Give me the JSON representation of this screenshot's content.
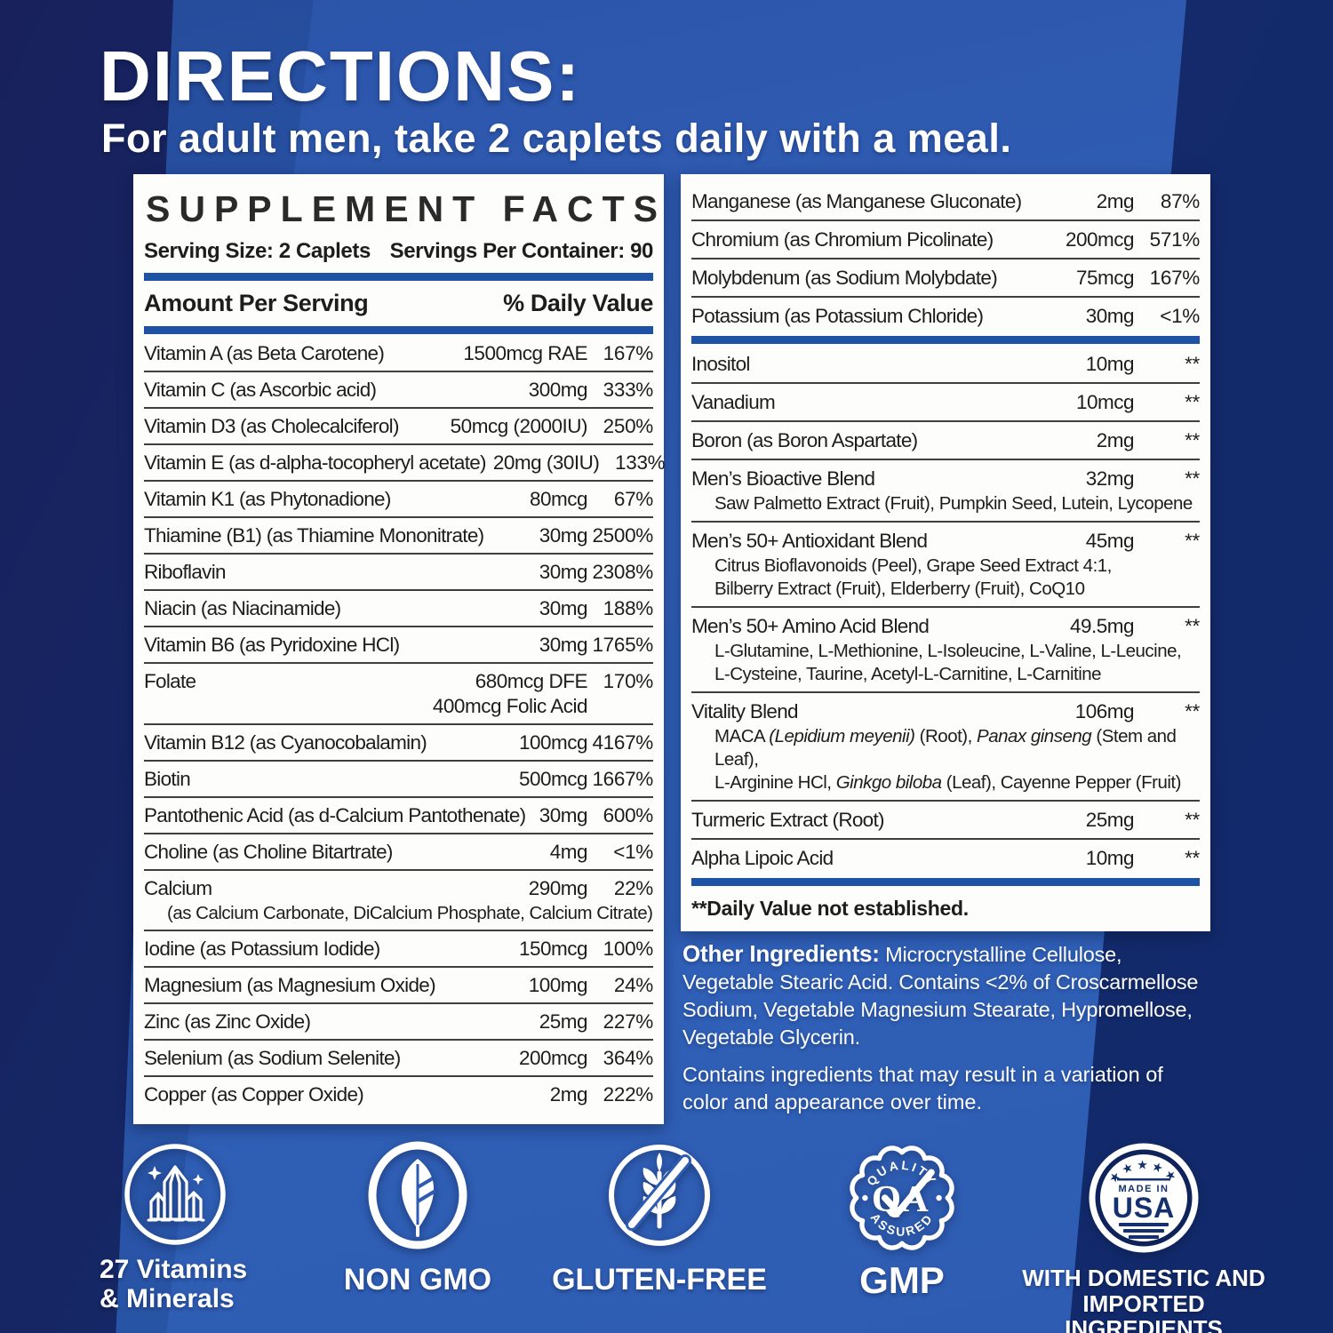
{
  "header": {
    "title": "DIRECTIONS:",
    "subtitle": "For adult men, take 2 caplets daily with a meal."
  },
  "supplement_facts": {
    "title": "SUPPLEMENT FACTS",
    "serving_size": "Serving Size: 2 Caplets",
    "servings_per_container": "Servings Per Container: 90",
    "amount_header": "Amount Per Serving",
    "dv_header": "% Daily Value",
    "left_rows": [
      {
        "name": "Vitamin A (as Beta Carotene)",
        "amount": "1500mcg RAE",
        "dv": "167%"
      },
      {
        "name": "Vitamin C (as Ascorbic acid)",
        "amount": "300mg",
        "dv": "333%"
      },
      {
        "name": "Vitamin D3 (as Cholecalciferol)",
        "amount": "50mcg (2000IU)",
        "dv": "250%"
      },
      {
        "name": "Vitamin E (as d-alpha-tocopheryl acetate)",
        "amount": "20mg (30IU)",
        "dv": "133%"
      },
      {
        "name": "Vitamin K1 (as Phytonadione)",
        "amount": "80mcg",
        "dv": "67%"
      },
      {
        "name": "Thiamine (B1) (as Thiamine Mononitrate)",
        "amount": "30mg",
        "dv": "2500%"
      },
      {
        "name": "Riboflavin",
        "amount": "30mg",
        "dv": "2308%"
      },
      {
        "name": "Niacin (as Niacinamide)",
        "amount": "30mg",
        "dv": "188%"
      },
      {
        "name": "Vitamin B6 (as Pyridoxine HCl)",
        "amount": "30mg",
        "dv": "1765%"
      },
      {
        "name": "Folate",
        "amount": "680mcg DFE",
        "amount2": "400mcg Folic Acid",
        "dv": "170%"
      },
      {
        "name": "Vitamin B12 (as Cyanocobalamin)",
        "amount": "100mcg",
        "dv": "4167%"
      },
      {
        "name": "Biotin",
        "amount": "500mcg",
        "dv": "1667%"
      },
      {
        "name": "Pantothenic Acid (as d-Calcium Pantothenate)",
        "amount": "30mg",
        "dv": "600%"
      },
      {
        "name": "Choline (as Choline Bitartrate)",
        "amount": "4mg",
        "dv": "<1%"
      },
      {
        "name": "Calcium",
        "amount": "290mg",
        "dv": "22%",
        "sub": "(as Calcium Carbonate, DiCalcium Phosphate, Calcium Citrate)"
      },
      {
        "name": "Iodine (as Potassium Iodide)",
        "amount": "150mcg",
        "dv": "100%"
      },
      {
        "name": "Magnesium (as Magnesium Oxide)",
        "amount": "100mg",
        "dv": "24%"
      },
      {
        "name": "Zinc (as Zinc Oxide)",
        "amount": "25mg",
        "dv": "227%"
      },
      {
        "name": "Selenium (as Sodium Selenite)",
        "amount": "200mcg",
        "dv": "364%"
      },
      {
        "name": "Copper (as Copper Oxide)",
        "amount": "2mg",
        "dv": "222%"
      }
    ],
    "right_rows": [
      {
        "name": "Manganese (as Manganese Gluconate)",
        "amount": "2mg",
        "dv": "87%"
      },
      {
        "name": "Chromium (as Chromium Picolinate)",
        "amount": "200mcg",
        "dv": "571%"
      },
      {
        "name": "Molybdenum (as Sodium Molybdate)",
        "amount": "75mcg",
        "dv": "167%"
      },
      {
        "name": "Potassium (as Potassium Chloride)",
        "amount": "30mg",
        "dv": "<1%"
      },
      {
        "bar": true
      },
      {
        "name": "Inositol",
        "amount": "10mg",
        "dv": "**"
      },
      {
        "name": "Vanadium",
        "amount": "10mcg",
        "dv": "**"
      },
      {
        "name": "Boron (as Boron Aspartate)",
        "amount": "2mg",
        "dv": "**"
      },
      {
        "name": "Men’s Bioactive Blend",
        "amount": "32mg",
        "dv": "**",
        "sub": "Saw Palmetto Extract (Fruit), Pumpkin Seed, Lutein, Lycopene"
      },
      {
        "name": "Men’s 50+ Antioxidant Blend",
        "amount": "45mg",
        "dv": "**",
        "sub": "Citrus Bioflavonoids (Peel), Grape Seed Extract 4:1,\nBilberry Extract (Fruit), Elderberry (Fruit), CoQ10"
      },
      {
        "name": "Men’s 50+ Amino Acid Blend",
        "amount": "49.5mg",
        "dv": "**",
        "sub": "L-Glutamine, L-Methionine, L-Isoleucine, L-Valine, L-Leucine,\nL-Cysteine, Taurine, Acetyl-L-Carnitine, L-Carnitine"
      },
      {
        "name": "Vitality Blend",
        "amount": "106mg",
        "dv": "**",
        "sub": [
          {
            "t": "MACA "
          },
          {
            "t": "(Lepidium meyenii)",
            "i": 1
          },
          {
            "t": " (Root), "
          },
          {
            "t": "Panax ginseng",
            "i": 1
          },
          {
            "t": " (Stem and Leaf),"
          },
          {
            "br": 1
          },
          {
            "t": "L-Arginine HCl, "
          },
          {
            "t": "Ginkgo biloba",
            "i": 1
          },
          {
            "t": " (Leaf), Cayenne Pepper (Fruit)"
          }
        ]
      },
      {
        "name": "Turmeric Extract (Root)",
        "amount": "25mg",
        "dv": "**"
      },
      {
        "name": "Alpha Lipoic Acid",
        "amount": "10mg",
        "dv": "**"
      },
      {
        "bar": true
      }
    ],
    "footnote": "**Daily Value not established."
  },
  "other": {
    "label": "Other Ingredients:",
    "text": " Microcrystalline Cellulose, Vegetable Stearic Acid. Contains <2% of Croscarmellose Sodium, Vegetable Magnesium Stearate, Hypromellose, Vegetable Glycerin.",
    "variation": "Contains ingredients that may result in a variation of color and appearance over time."
  },
  "badges": [
    {
      "icon": "crystals-icon",
      "label": "27 Vitamins\n& Minerals"
    },
    {
      "icon": "leaf-icon",
      "label": "NON GMO"
    },
    {
      "icon": "wheat-free-icon",
      "label": "GLUTEN-FREE"
    },
    {
      "icon": "qa-seal-icon",
      "label": "GMP",
      "seal_top": "QUALITY",
      "seal_letters": "QA",
      "seal_bottom": "ASSURED"
    },
    {
      "icon": "usa-badge-icon",
      "label": "WITH DOMESTIC AND\nIMPORTED INGREDIENTS",
      "badge_top": "MADE IN",
      "badge_main": "USA",
      "badge_stars": "★★★★★"
    }
  ],
  "colors": {
    "navy": "#142a6a",
    "band_blue": "#2f5fb6",
    "bar_blue": "#1e52a4",
    "panel": "#fdfdfc",
    "ink": "#1d1d1b"
  }
}
